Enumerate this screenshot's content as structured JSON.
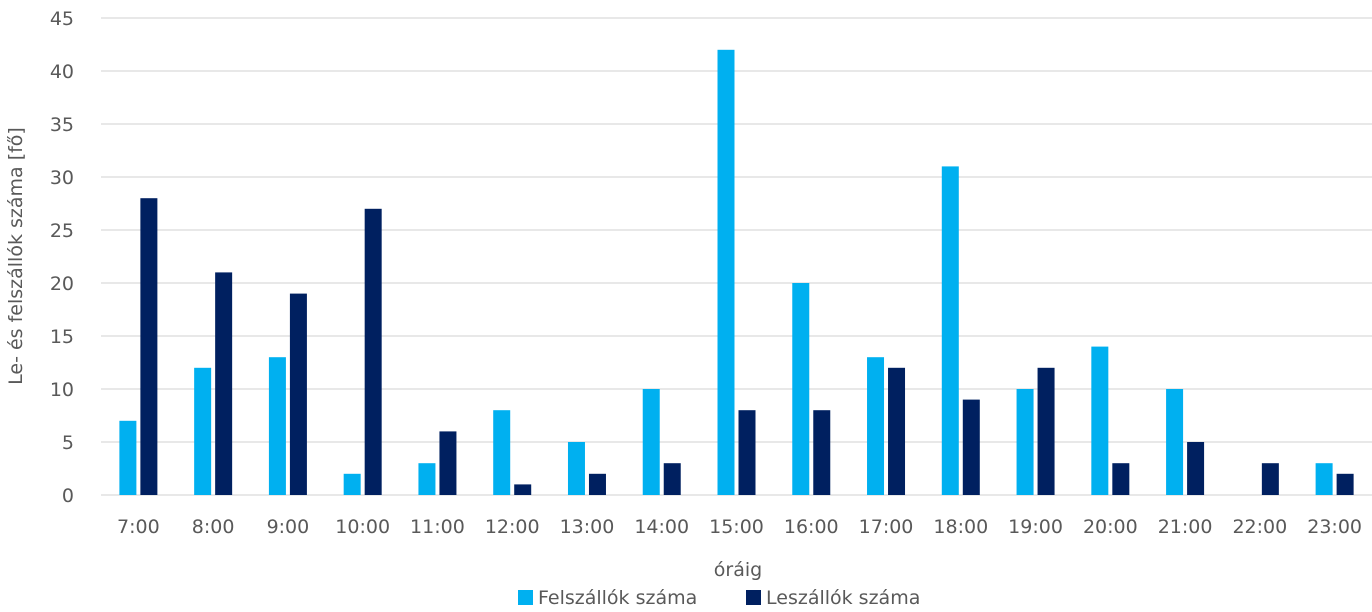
{
  "chart_data": {
    "type": "bar",
    "title": "",
    "xlabel": "óráig",
    "ylabel": "Le- és felszállók száma [fő]",
    "ylim": [
      0,
      45
    ],
    "yticks": [
      0,
      5,
      10,
      15,
      20,
      25,
      30,
      35,
      40,
      45
    ],
    "grid": true,
    "legend_position": "bottom",
    "categories": [
      "7:00",
      "8:00",
      "9:00",
      "10:00",
      "11:00",
      "12:00",
      "13:00",
      "14:00",
      "15:00",
      "16:00",
      "17:00",
      "18:00",
      "19:00",
      "20:00",
      "21:00",
      "22:00",
      "23:00"
    ],
    "series": [
      {
        "name": "Felszállók száma",
        "color": "#00b0f0",
        "values": [
          7,
          12,
          13,
          2,
          3,
          8,
          5,
          10,
          42,
          20,
          13,
          31,
          10,
          14,
          10,
          0,
          3
        ]
      },
      {
        "name": "Leszállók száma",
        "color": "#002060",
        "values": [
          28,
          21,
          19,
          27,
          6,
          1,
          2,
          3,
          8,
          8,
          12,
          9,
          12,
          3,
          5,
          3,
          2
        ]
      }
    ]
  }
}
